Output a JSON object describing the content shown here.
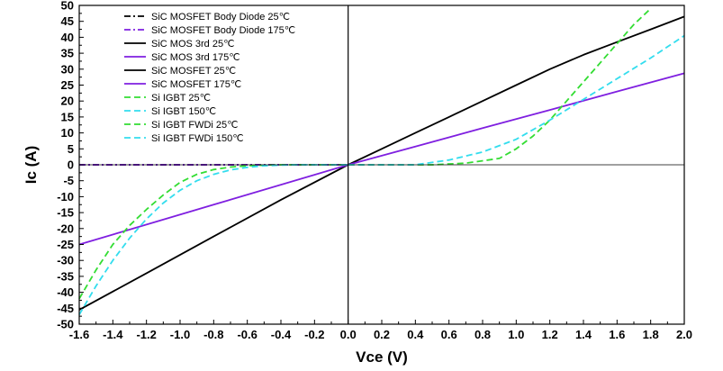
{
  "chart_data": {
    "type": "line",
    "xlabel": "Vce (V)",
    "ylabel": "Ic (A)",
    "xlim": [
      -1.6,
      2.0
    ],
    "ylim": [
      -50,
      50
    ],
    "x_ticks": [
      -1.6,
      -1.4,
      -1.2,
      -1.0,
      -0.8,
      -0.6,
      -0.4,
      -0.2,
      0.0,
      0.2,
      0.4,
      0.6,
      0.8,
      1.0,
      1.2,
      1.4,
      1.6,
      1.8,
      2.0
    ],
    "x_tick_labels": [
      "-1.6",
      "-1.4",
      "-1.2",
      "-1.0",
      "-0.8",
      "-0.6",
      "-0.4",
      "-0.2",
      "0.0",
      "0.2",
      "0.4",
      "0.6",
      "0.8",
      "1.0",
      "1.2",
      "1.4",
      "1.6",
      "1.8",
      "2.0"
    ],
    "y_ticks": [
      -50,
      -45,
      -40,
      -35,
      -30,
      -25,
      -20,
      -15,
      -10,
      -5,
      0,
      5,
      10,
      15,
      20,
      25,
      30,
      35,
      40,
      45,
      50
    ],
    "y_tick_labels": [
      "-50",
      "-45",
      "-40",
      "-35",
      "-30",
      "-25",
      "-20",
      "-15",
      "-10",
      "-5",
      "0",
      "5",
      "10",
      "15",
      "20",
      "25",
      "30",
      "35",
      "40",
      "45",
      "50"
    ],
    "grid": false,
    "legend_position": "top-left",
    "series": [
      {
        "name": "SiC MOSFET Body Diode 25℃",
        "color": "#000000",
        "dash": "dashdot",
        "x": [
          -1.6,
          0.0
        ],
        "y": [
          0,
          0
        ]
      },
      {
        "name": "SiC MOSFET Body Diode 175℃",
        "color": "#7f1fe0",
        "dash": "dashdot",
        "x": [
          -1.6,
          0.0
        ],
        "y": [
          0,
          0
        ]
      },
      {
        "name": "SiC MOS 3rd  25℃",
        "color": "#000000",
        "dash": "solid",
        "x": [
          -1.6,
          -1.2,
          -0.8,
          -0.4,
          0.0
        ],
        "y": [
          -45.5,
          -34,
          -22.5,
          -11,
          0
        ]
      },
      {
        "name": "SiC MOS 3rd 175℃",
        "color": "#7f1fe0",
        "dash": "solid",
        "x": [
          -1.6,
          -0.8,
          0.0
        ],
        "y": [
          -25,
          -12.5,
          0
        ]
      },
      {
        "name": "SiC MOSFET  25℃",
        "color": "#000000",
        "dash": "solid",
        "x": [
          0.0,
          0.2,
          0.4,
          0.6,
          0.8,
          1.0,
          1.2,
          1.4,
          1.6,
          1.8,
          2.0
        ],
        "y": [
          0,
          5,
          10,
          15,
          20,
          25,
          30,
          34.5,
          38.5,
          42.5,
          46.5
        ]
      },
      {
        "name": "SiC MOSFET 175℃",
        "color": "#7f1fe0",
        "dash": "solid",
        "x": [
          0.0,
          0.4,
          0.8,
          1.2,
          1.6,
          2.0
        ],
        "y": [
          0,
          5.7,
          11.5,
          17.2,
          23,
          28.7
        ]
      },
      {
        "name": "Si IGBT 25℃",
        "color": "#33dd33",
        "dash": "dash",
        "x": [
          0.0,
          0.5,
          0.7,
          0.9,
          1.0,
          1.1,
          1.2,
          1.3,
          1.4,
          1.5,
          1.6,
          1.7,
          1.8
        ],
        "y": [
          0,
          0,
          0.5,
          2,
          5,
          9,
          14,
          20,
          26,
          32,
          38,
          44,
          49
        ]
      },
      {
        "name": "Si IGBT 150℃",
        "color": "#33ddee",
        "dash": "dash",
        "x": [
          0.0,
          0.4,
          0.6,
          0.8,
          1.0,
          1.2,
          1.4,
          1.6,
          1.8,
          2.0
        ],
        "y": [
          0,
          0,
          1.5,
          4,
          8,
          14,
          20.5,
          27,
          33.5,
          40.5
        ]
      },
      {
        "name": "Si IGBT FWDi  25℃",
        "color": "#33dd33",
        "dash": "dash",
        "x": [
          -1.6,
          -1.5,
          -1.4,
          -1.3,
          -1.2,
          -1.1,
          -1.0,
          -0.9,
          -0.8,
          -0.7,
          -0.6,
          -0.5,
          -0.4,
          0.0
        ],
        "y": [
          -42,
          -33,
          -25,
          -19,
          -14,
          -9.5,
          -5.5,
          -3,
          -1.5,
          -0.7,
          -0.3,
          -0.1,
          0,
          0
        ]
      },
      {
        "name": "Si IGBT FWDi  150℃",
        "color": "#33ddee",
        "dash": "dash",
        "x": [
          -1.6,
          -1.5,
          -1.4,
          -1.3,
          -1.2,
          -1.1,
          -1.0,
          -0.9,
          -0.8,
          -0.7,
          -0.6,
          -0.5,
          -0.4,
          -0.3,
          0.0
        ],
        "y": [
          -47,
          -38,
          -30,
          -23,
          -17,
          -12,
          -8,
          -5,
          -3,
          -1.6,
          -0.8,
          -0.3,
          -0.1,
          0,
          0
        ]
      }
    ]
  }
}
